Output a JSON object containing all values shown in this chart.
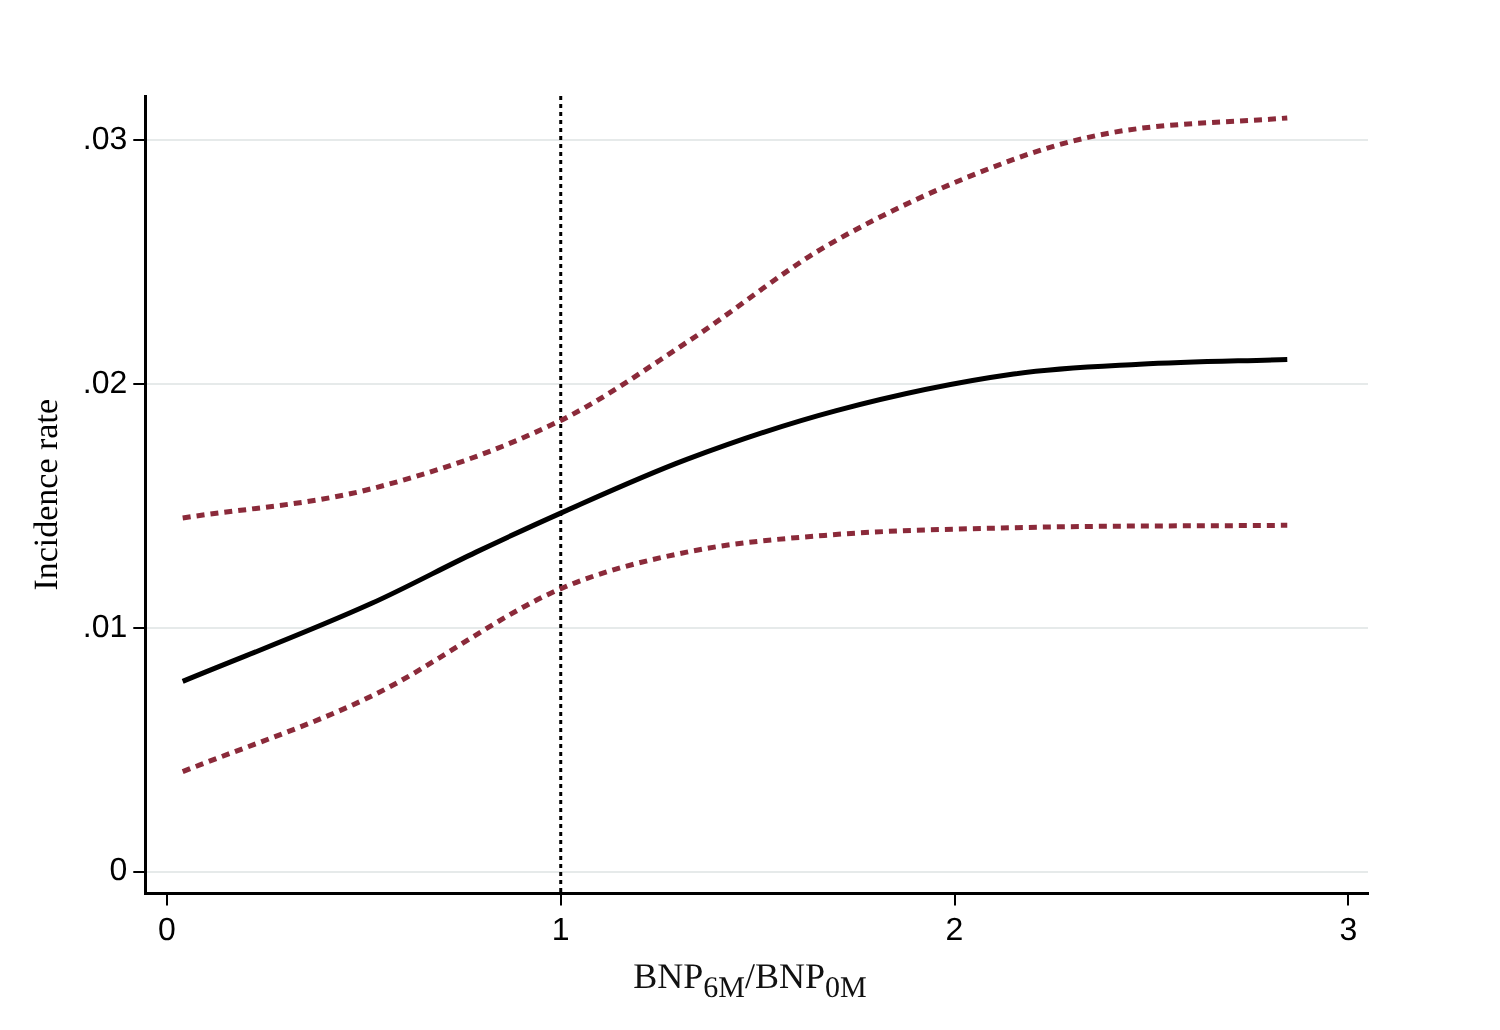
{
  "chart_data": {
    "type": "line",
    "xlabel": "BNP$_{6M}$/BNP$_{0M}$",
    "ylabel": "Incidence rate",
    "series": [
      {
        "color": "#8b2a3a",
        "line_style": "dashed",
        "x": [
          0.04,
          0.52,
          1,
          1.32,
          1.68,
          2.15,
          2.4,
          2.845
        ],
        "values": [
          0.0145,
          0.0157,
          0.0185,
          0.0217,
          0.0257,
          0.0292,
          0.0303,
          0.0309
        ]
      },
      {
        "color": "#000000",
        "line_style": "solid",
        "x": [
          0.04,
          0.52,
          0.785,
          1,
          1.32,
          1.7,
          2.15,
          2.47,
          2.845
        ],
        "values": [
          0.0078,
          0.011,
          0.0131,
          0.0147,
          0.0169,
          0.0189,
          0.0204,
          0.0208,
          0.021
        ]
      },
      {
        "color": "#8b2a3a",
        "line_style": "dashed",
        "x": [
          0.04,
          0.52,
          1,
          1.32,
          1.68,
          2.15,
          2.845
        ],
        "values": [
          0.0041,
          0.0072,
          0.0116,
          0.0131,
          0.0138,
          0.0141,
          0.0142
        ]
      }
    ],
    "xlim": [
      -0.055,
      3.05
    ],
    "xticks": [
      0,
      1,
      2,
      3
    ],
    "ylim": [
      -0.0009,
      0.0318
    ],
    "yticks": [
      {
        "value": 0,
        "label": "0"
      },
      {
        "value": 0.01,
        "label": ".01"
      },
      {
        "value": 0.02,
        "label": ".02"
      },
      {
        "value": 0.03,
        "label": ".03"
      }
    ],
    "grid": "y",
    "marker": "none",
    "ref_lines": [
      {
        "axis": "x",
        "value": 1,
        "color": "#000000",
        "line_style": "dotted"
      }
    ]
  }
}
